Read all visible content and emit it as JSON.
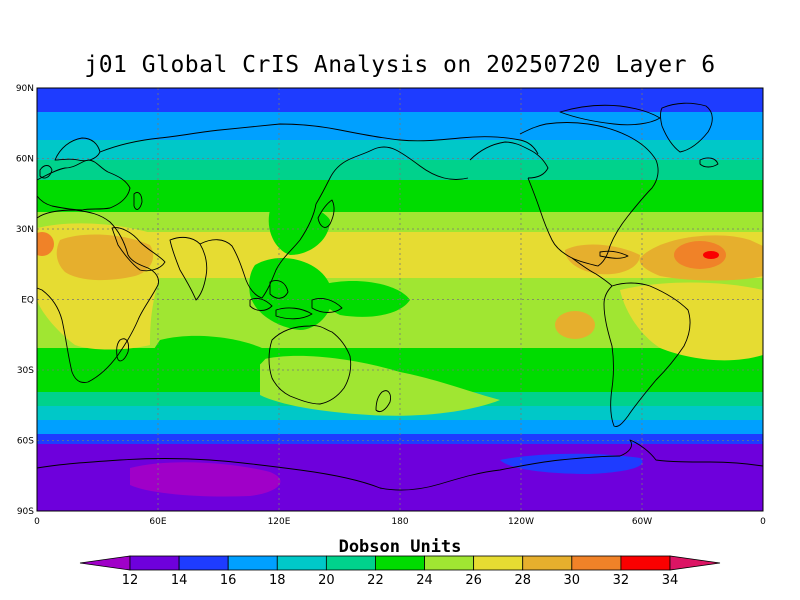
{
  "title": "j01 Global CrIS Analysis on 20250720 Layer 6",
  "map": {
    "lat_labels": [
      "90N",
      "60N",
      "30N",
      "EQ",
      "30S",
      "60S",
      "90S"
    ],
    "lon_labels": [
      "0",
      "60E",
      "120E",
      "180",
      "120W",
      "60W",
      "0"
    ]
  },
  "colorbar": {
    "label": "Dobson Units",
    "ticks": [
      "12",
      "14",
      "16",
      "18",
      "20",
      "22",
      "24",
      "26",
      "28",
      "30",
      "32",
      "34"
    ],
    "colors": [
      "#a000c8",
      "#6e00dc",
      "#1e3cff",
      "#00a0ff",
      "#00c8c8",
      "#00d28c",
      "#00dc00",
      "#a0e632",
      "#e6dc32",
      "#e6af2d",
      "#f08228",
      "#fa0000",
      "#dc1464"
    ]
  },
  "field": {
    "color_levels": [
      "#6e00dc",
      "#1e3cff",
      "#00a0ff",
      "#00c8c8",
      "#00d28c",
      "#00dc00",
      "#a0e632",
      "#e6dc32",
      "#e6af2d",
      "#f08228",
      "#fa0000"
    ]
  }
}
